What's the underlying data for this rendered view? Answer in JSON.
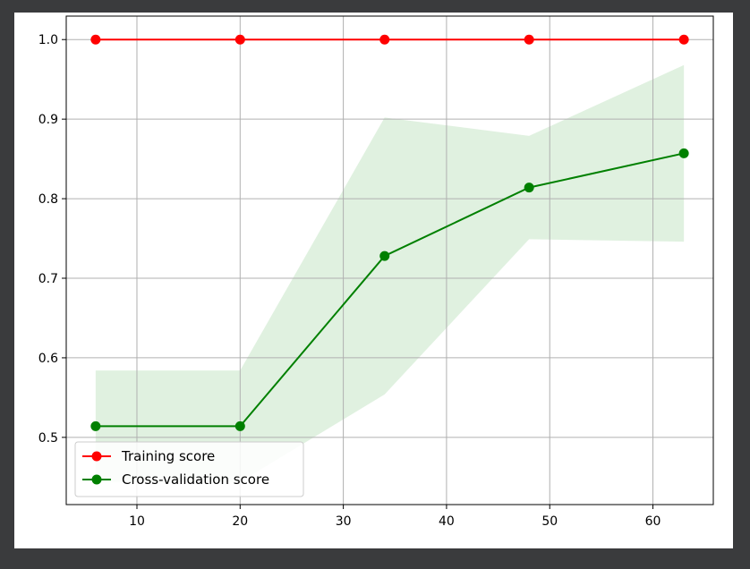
{
  "chart_data": {
    "type": "line",
    "title": "",
    "xlabel": "",
    "ylabel": "",
    "xlim": [
      3.15,
      65.85
    ],
    "ylim": [
      0.4155,
      1.0295
    ],
    "x_ticks": [
      10,
      20,
      30,
      40,
      50,
      60
    ],
    "y_ticks": [
      0.5,
      0.6,
      0.7,
      0.8,
      0.9,
      1.0
    ],
    "x_tick_labels": [
      "10",
      "20",
      "30",
      "40",
      "50",
      "60"
    ],
    "y_tick_labels": [
      "0.5",
      "0.6",
      "0.7",
      "0.8",
      "0.9",
      "1.0"
    ],
    "grid": true,
    "legend_position": "lower-left",
    "x": [
      6,
      20,
      34,
      48,
      63
    ],
    "series": [
      {
        "name": "Training score",
        "color": "#ff0000",
        "values": [
          1.0,
          1.0,
          1.0,
          1.0,
          1.0
        ],
        "band_lower": [
          1.0,
          1.0,
          1.0,
          1.0,
          1.0
        ],
        "band_upper": [
          1.0,
          1.0,
          1.0,
          1.0,
          1.0
        ]
      },
      {
        "name": "Cross-validation score",
        "color": "#008000",
        "values": [
          0.514,
          0.514,
          0.728,
          0.814,
          0.857
        ],
        "band_lower": [
          0.444,
          0.444,
          0.554,
          0.749,
          0.746
        ],
        "band_upper": [
          0.584,
          0.584,
          0.902,
          0.879,
          0.968
        ],
        "band_color": "#d6ecd6"
      }
    ]
  }
}
